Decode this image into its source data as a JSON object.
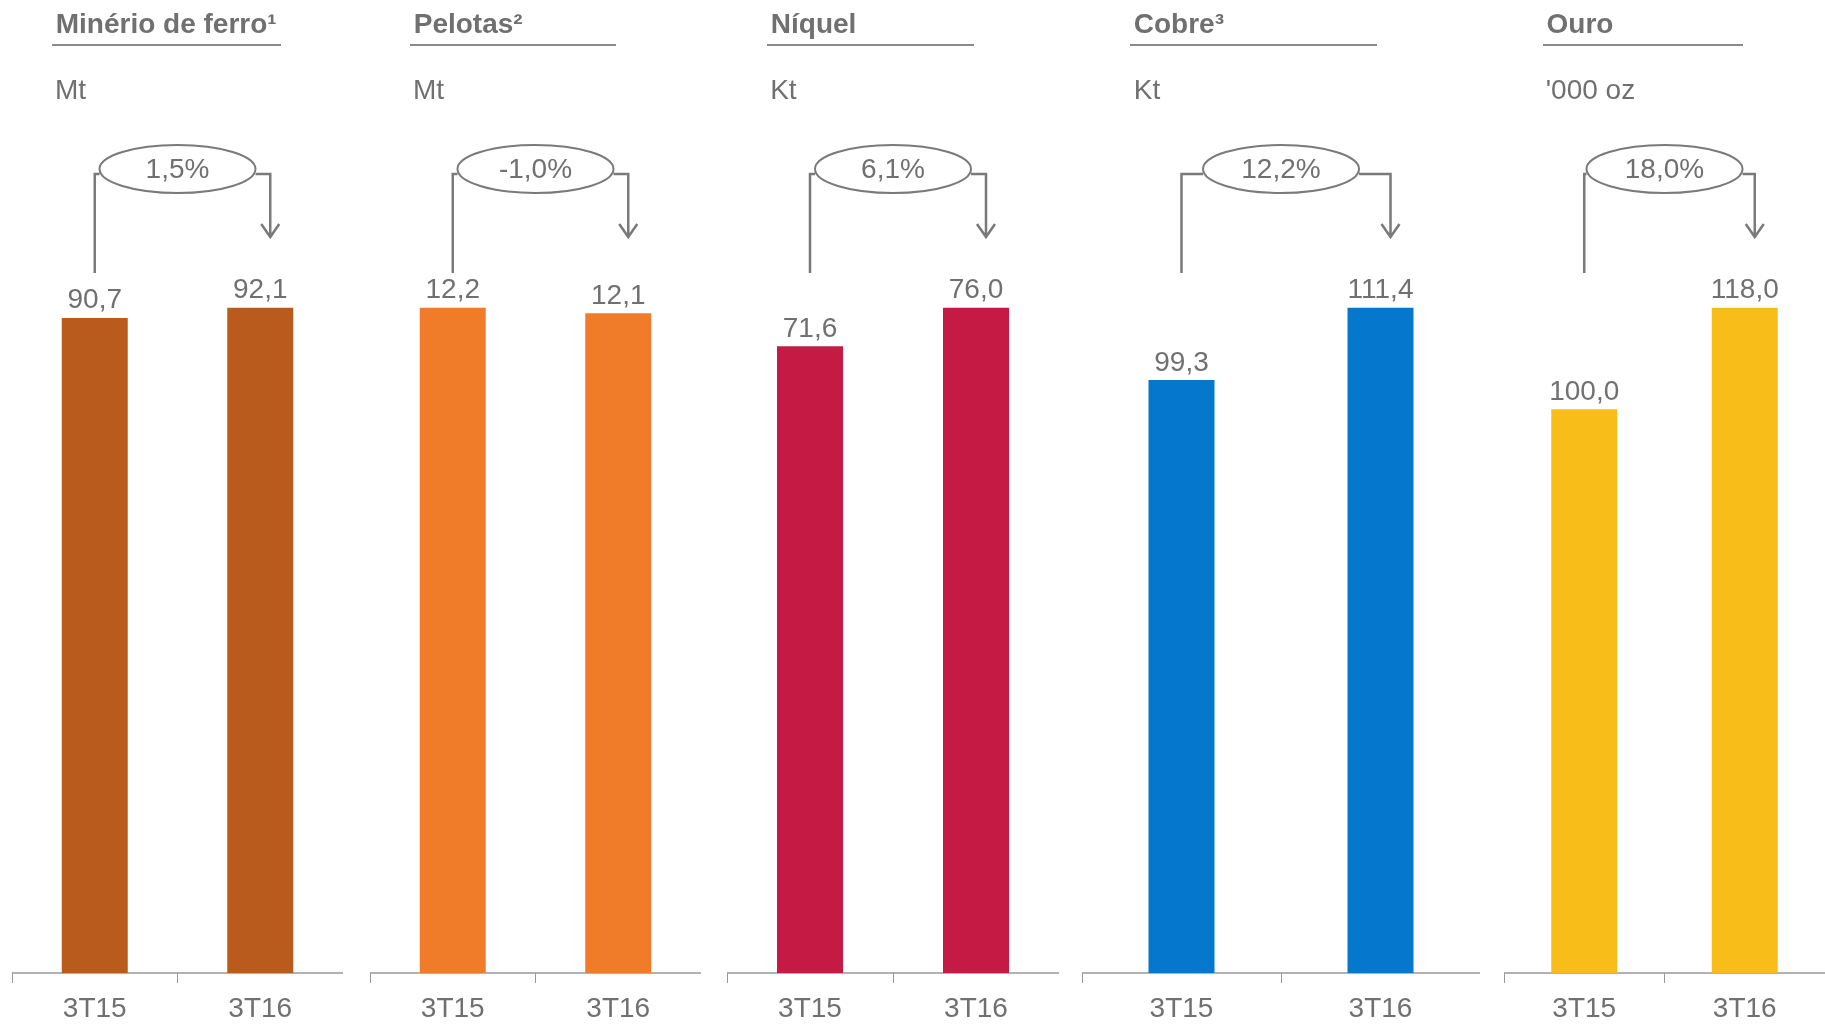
{
  "chart_data": [
    {
      "type": "bar",
      "title": "Minério de ferro¹",
      "subtitle": "Mt",
      "categories": [
        "3T15",
        "3T16"
      ],
      "values": [
        90.7,
        92.1
      ],
      "value_labels": [
        "90,7",
        "92,1"
      ],
      "color": "#b95b1c",
      "annotations": [
        "1,5%"
      ]
    },
    {
      "type": "bar",
      "title": "Pelotas²",
      "subtitle": "Mt",
      "categories": [
        "3T15",
        "3T16"
      ],
      "values": [
        12.2,
        12.1
      ],
      "value_labels": [
        "12,2",
        "12,1"
      ],
      "color": "#f07c2a",
      "annotations": [
        "-1,0%"
      ]
    },
    {
      "type": "bar",
      "title": "Níquel",
      "subtitle": "Kt",
      "categories": [
        "3T15",
        "3T16"
      ],
      "values": [
        71.6,
        76.0
      ],
      "value_labels": [
        "71,6",
        "76,0"
      ],
      "color": "#c41a43",
      "annotations": [
        "6,1%"
      ]
    },
    {
      "type": "bar",
      "title": "Cobre³",
      "subtitle": "Kt",
      "categories": [
        "3T15",
        "3T16"
      ],
      "values": [
        99.3,
        111.4
      ],
      "value_labels": [
        "99,3",
        "111,4"
      ],
      "color": "#0577cc",
      "annotations": [
        "12,2%"
      ]
    },
    {
      "type": "bar",
      "title": "Ouro",
      "subtitle": "'000 oz",
      "categories": [
        "3T15",
        "3T16"
      ],
      "values": [
        100.0,
        118.0
      ],
      "value_labels": [
        "100,0",
        "118,0"
      ],
      "color": "#f9bd1a",
      "annotations": [
        "18,0%"
      ]
    }
  ]
}
